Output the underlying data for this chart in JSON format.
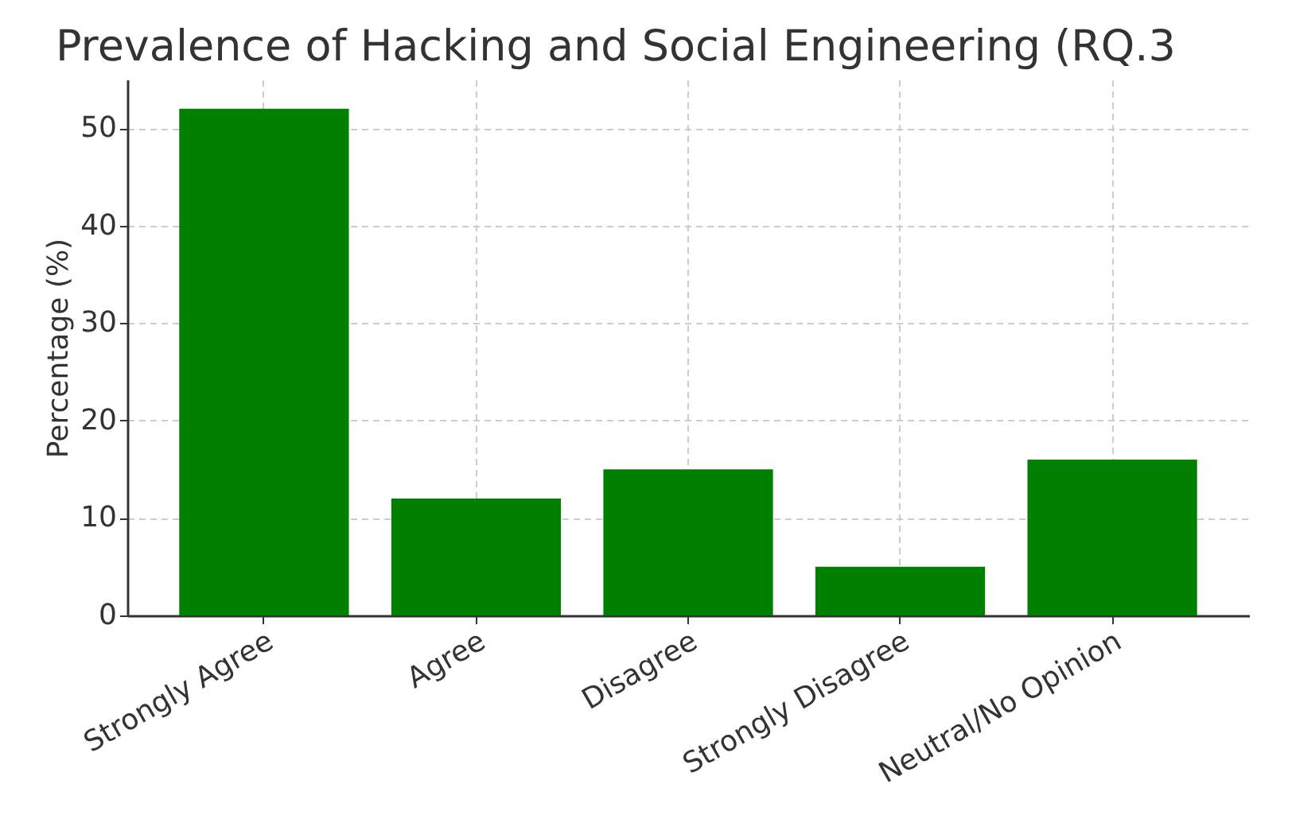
{
  "chart_data": {
    "type": "bar",
    "title": "Prevalence of Hacking and Social Engineering (RQ.3",
    "ylabel": "Percentage (%)",
    "categories": [
      "Strongly Agree",
      "Agree",
      "Disagree",
      "Strongly Disagree",
      "Neutral/No Opinion"
    ],
    "values": [
      52,
      12,
      15,
      5,
      16
    ],
    "color": "#008000",
    "ylim": [
      0,
      55
    ],
    "yticks": [
      0,
      10,
      20,
      30,
      40,
      50
    ],
    "grid": true
  }
}
